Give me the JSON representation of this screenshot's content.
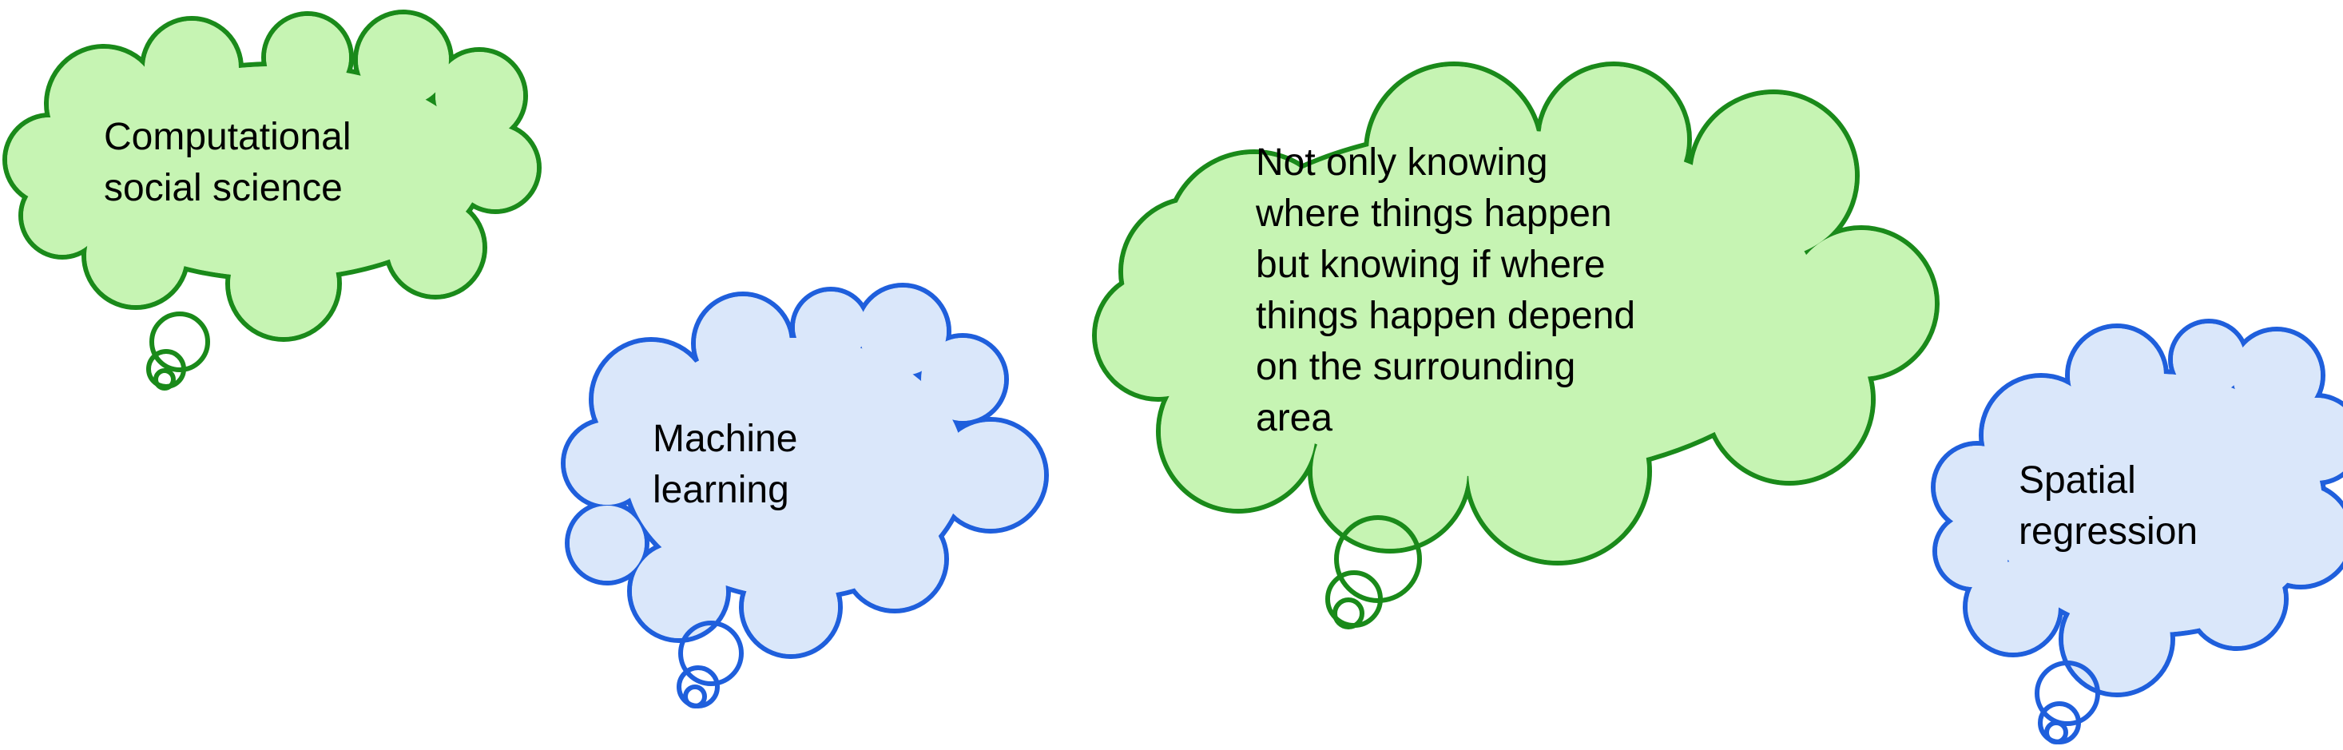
{
  "colors": {
    "green_fill": "#c6f4b3",
    "green_stroke": "#1a8a1a",
    "blue_fill": "#dae7fa",
    "blue_stroke": "#1f5fdc"
  },
  "bubbles": [
    {
      "id": "computational-social-science",
      "theme": "green",
      "lines": [
        "Computational",
        "social science"
      ]
    },
    {
      "id": "machine-learning",
      "theme": "blue",
      "lines": [
        "Machine",
        "learning"
      ]
    },
    {
      "id": "spatial-dependence",
      "theme": "green",
      "lines": [
        "Not only knowing",
        "where things happen",
        "but knowing if where",
        "things happen depend",
        "on the surrounding",
        "area"
      ]
    },
    {
      "id": "spatial-regression",
      "theme": "blue",
      "lines": [
        "Spatial",
        "regression"
      ]
    }
  ]
}
